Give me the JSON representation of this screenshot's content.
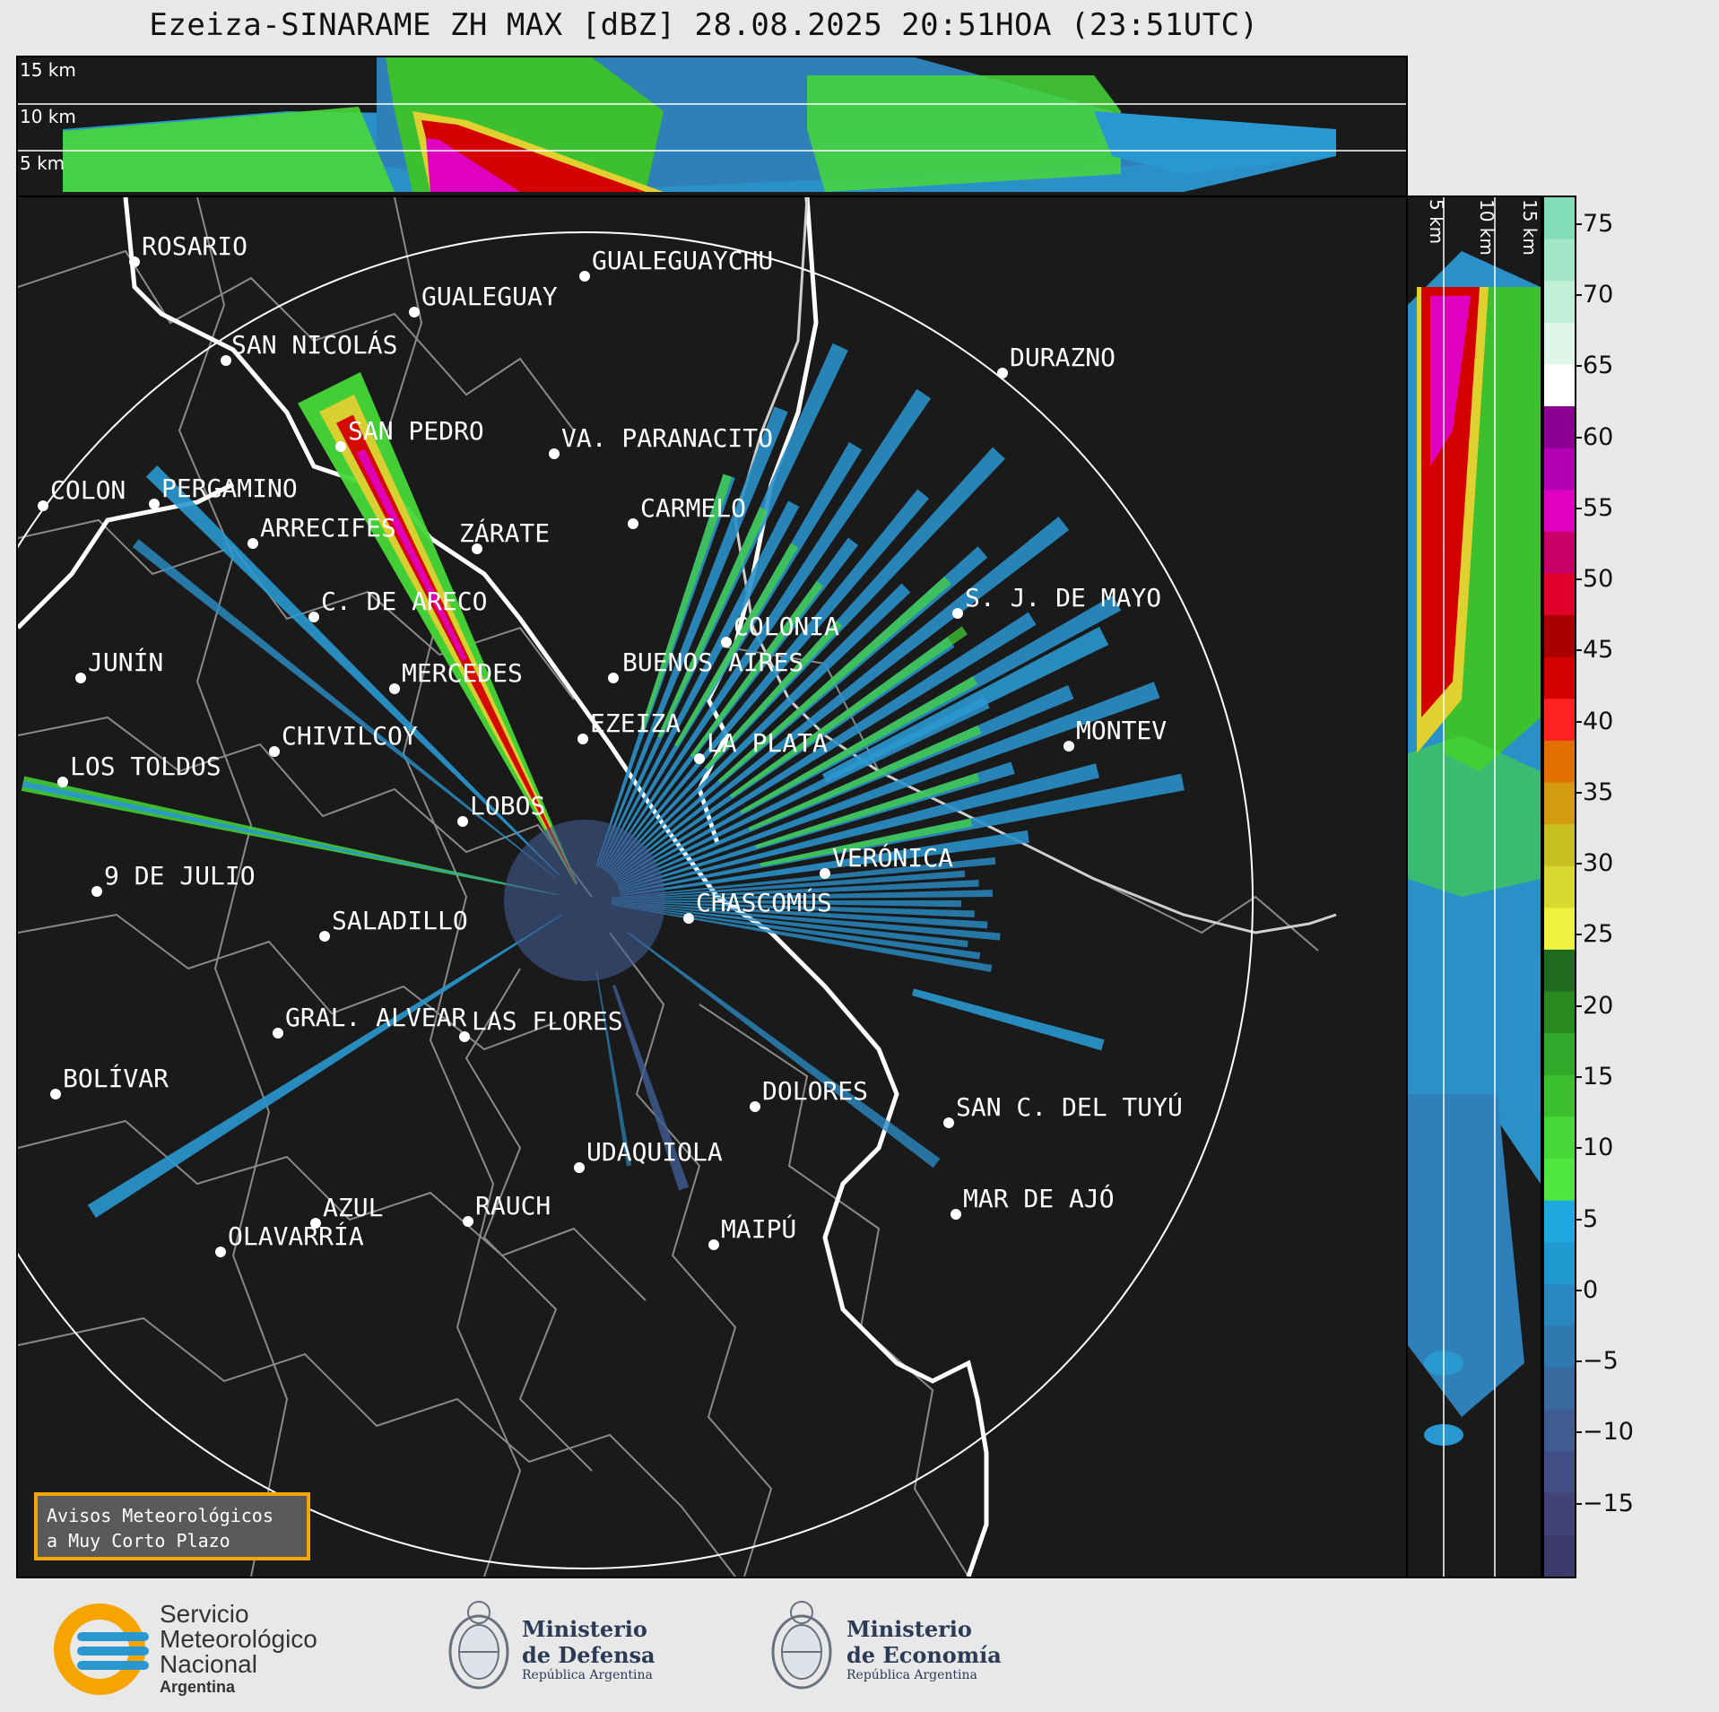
{
  "title": "Ezeiza-SINARAME ZH MAX [dBZ] 28.08.2025 20:51HOA (23:51UTC)",
  "top_panel": {
    "labels": [
      "15 km",
      "10 km",
      "5 km"
    ]
  },
  "side_panel": {
    "labels": [
      "5 km",
      "10 km",
      "15 km"
    ]
  },
  "colorbar": {
    "ticks": [
      "75",
      "70",
      "65",
      "60",
      "55",
      "50",
      "45",
      "40",
      "35",
      "30",
      "25",
      "20",
      "15",
      "10",
      "5",
      "0",
      "−5",
      "−10",
      "−15"
    ],
    "colors": [
      "#83dcb8",
      "#a4e6c8",
      "#c2efd8",
      "#dff7ea",
      "#ffffff",
      "#8b0090",
      "#b400b4",
      "#e000c0",
      "#c8006a",
      "#e0002a",
      "#a80000",
      "#d40000",
      "#ff2020",
      "#e07000",
      "#d49a10",
      "#c8c020",
      "#d8d830",
      "#f0f040",
      "#1e6a1e",
      "#2a8a22",
      "#30a82a",
      "#3cc030",
      "#46d838",
      "#50e840",
      "#1ea8e0",
      "#2098d0",
      "#2a88c0",
      "#2f78b0",
      "#3a6aa0",
      "#3f5c92",
      "#404e85",
      "#404278",
      "#3c3a6c"
    ],
    "vmin": -20,
    "vmax": 77
  },
  "cities": [
    {
      "name": "ROSARIO"
    },
    {
      "name": "GUALEGUAYCHU"
    },
    {
      "name": "GUALEGUAY"
    },
    {
      "name": "SAN NICOLÁS"
    },
    {
      "name": "DURAZNO"
    },
    {
      "name": "SAN PEDRO"
    },
    {
      "name": "VA. PARANACITO"
    },
    {
      "name": "COLON"
    },
    {
      "name": "PERGAMINO"
    },
    {
      "name": "CARMELO"
    },
    {
      "name": "ARRECIFES"
    },
    {
      "name": "ZÁRATE"
    },
    {
      "name": "S. J. DE MAYO"
    },
    {
      "name": "C. DE ARECO"
    },
    {
      "name": "COLONIA"
    },
    {
      "name": "JUNÍN"
    },
    {
      "name": "BUENOS AIRES"
    },
    {
      "name": "MERCEDES"
    },
    {
      "name": "EZEIZA"
    },
    {
      "name": "MONTEV"
    },
    {
      "name": "CHIVILCOY"
    },
    {
      "name": "LA PLATA"
    },
    {
      "name": "LOS TOLDOS"
    },
    {
      "name": "LOBOS"
    },
    {
      "name": "VERÓNICA"
    },
    {
      "name": "9 DE JULIO"
    },
    {
      "name": "CHASCOMÚS"
    },
    {
      "name": "SALADILLO"
    },
    {
      "name": "GRAL. ALVEAR"
    },
    {
      "name": "LAS FLORES"
    },
    {
      "name": "BOLÍVAR"
    },
    {
      "name": "DOLORES"
    },
    {
      "name": "SAN C. DEL TUYÚ"
    },
    {
      "name": "UDAQUIOLA"
    },
    {
      "name": "MAR DE AJÓ"
    },
    {
      "name": "AZUL"
    },
    {
      "name": "RAUCH"
    },
    {
      "name": "MAIPÚ"
    },
    {
      "name": "OLAVARRÍA"
    }
  ],
  "aviso": {
    "line1": "Avisos Meteorológicos",
    "line2": "a Muy Corto Plazo"
  },
  "footer": {
    "smn": {
      "line1": "Servicio",
      "line2": "Meteorológico",
      "line3": "Nacional",
      "line4": "Argentina"
    },
    "defensa": {
      "line1": "Ministerio",
      "line2": "de Defensa",
      "line3": "República Argentina"
    },
    "economia": {
      "line1": "Ministerio",
      "line2": "de Economía",
      "line3": "República Argentina"
    }
  }
}
